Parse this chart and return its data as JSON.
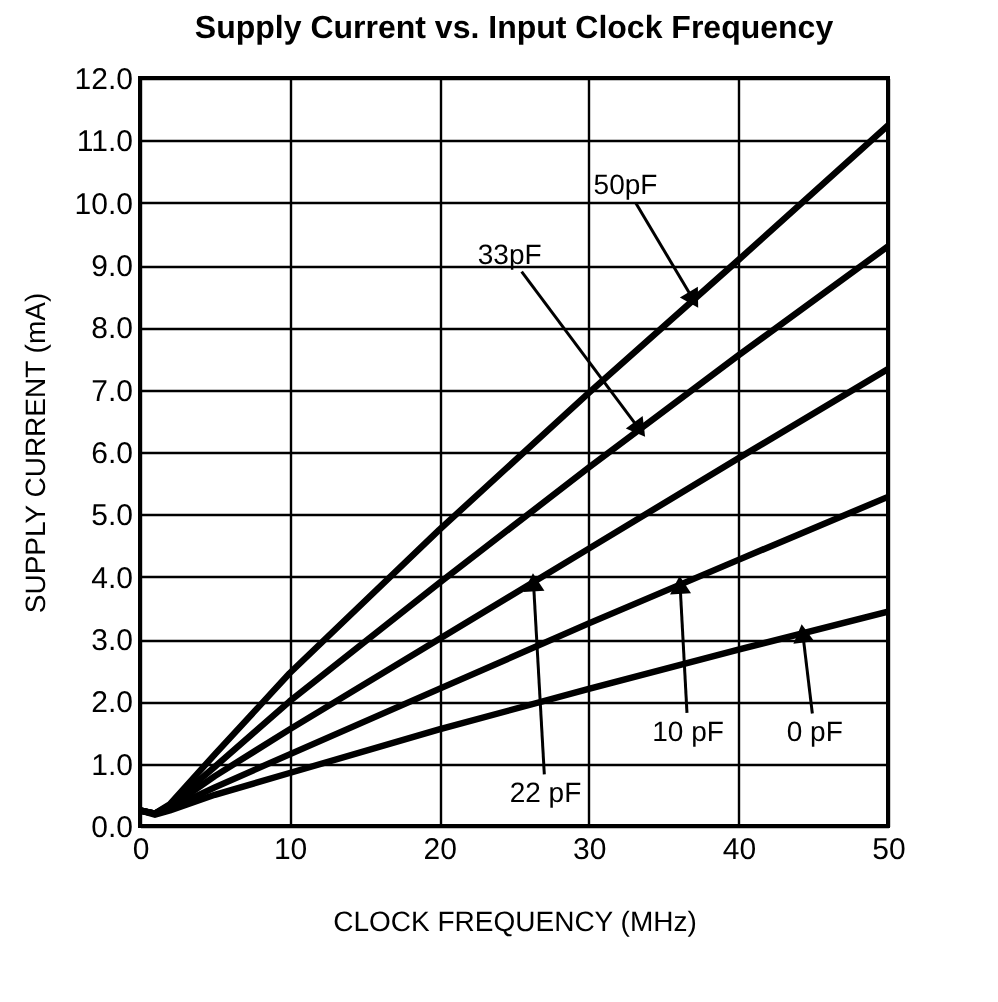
{
  "chart_data": {
    "type": "line",
    "title": "Supply Current vs. Input Clock Frequency",
    "xlabel": "CLOCK FREQUENCY (MHz)",
    "ylabel": "SUPPLY CURRENT (mA)",
    "x": [
      0,
      1,
      2,
      5,
      10,
      20,
      30,
      40,
      50
    ],
    "series": [
      {
        "color": "#000000",
        "values": [
          0.25,
          0.2,
          0.35,
          1.15,
          2.45,
          4.75,
          6.95,
          9.08,
          11.24
        ]
      },
      {
        "color": "#000000",
        "values": [
          0.25,
          0.2,
          0.33,
          0.95,
          2.0,
          3.9,
          5.75,
          7.55,
          9.3
        ]
      },
      {
        "color": "#000000",
        "values": [
          0.25,
          0.2,
          0.3,
          0.8,
          1.55,
          3.0,
          4.45,
          5.9,
          7.33
        ]
      },
      {
        "color": "#000000",
        "values": [
          0.25,
          0.2,
          0.28,
          0.62,
          1.15,
          2.2,
          3.25,
          4.27,
          5.28
        ]
      },
      {
        "color": "#000000",
        "values": [
          0.25,
          0.18,
          0.25,
          0.5,
          0.85,
          1.55,
          2.2,
          2.83,
          3.44
        ]
      }
    ],
    "annotations": [
      {
        "text": "50pF",
        "x": 37.0,
        "y": 8.44
      },
      {
        "text": "33pF",
        "x": 33.4,
        "y": 6.36
      },
      {
        "text": "22 pF",
        "x": 26.3,
        "y": 3.91
      },
      {
        "text": "10 pF",
        "x": 36.1,
        "y": 3.87
      },
      {
        "text": "0 pF",
        "x": 44.3,
        "y": 3.09
      }
    ],
    "xlim": [
      0,
      50
    ],
    "xticks": [
      0,
      10,
      20,
      30,
      40,
      50
    ],
    "ylim": [
      0,
      12
    ],
    "yticks": [
      {
        "value": 0,
        "label": "0.0"
      },
      {
        "value": 1,
        "label": "1.0"
      },
      {
        "value": 2,
        "label": "2.0"
      },
      {
        "value": 3,
        "label": "3.0"
      },
      {
        "value": 4,
        "label": "4.0"
      },
      {
        "value": 5,
        "label": "5.0"
      },
      {
        "value": 6,
        "label": "6.0"
      },
      {
        "value": 7,
        "label": "7.0"
      },
      {
        "value": 8,
        "label": "8.0"
      },
      {
        "value": 9,
        "label": "9.0"
      },
      {
        "value": 10,
        "label": "10.0"
      },
      {
        "value": 11,
        "label": "11.0"
      },
      {
        "value": 12,
        "label": "12.0"
      }
    ],
    "grid": true,
    "line_style": "solid",
    "marker": "none"
  }
}
